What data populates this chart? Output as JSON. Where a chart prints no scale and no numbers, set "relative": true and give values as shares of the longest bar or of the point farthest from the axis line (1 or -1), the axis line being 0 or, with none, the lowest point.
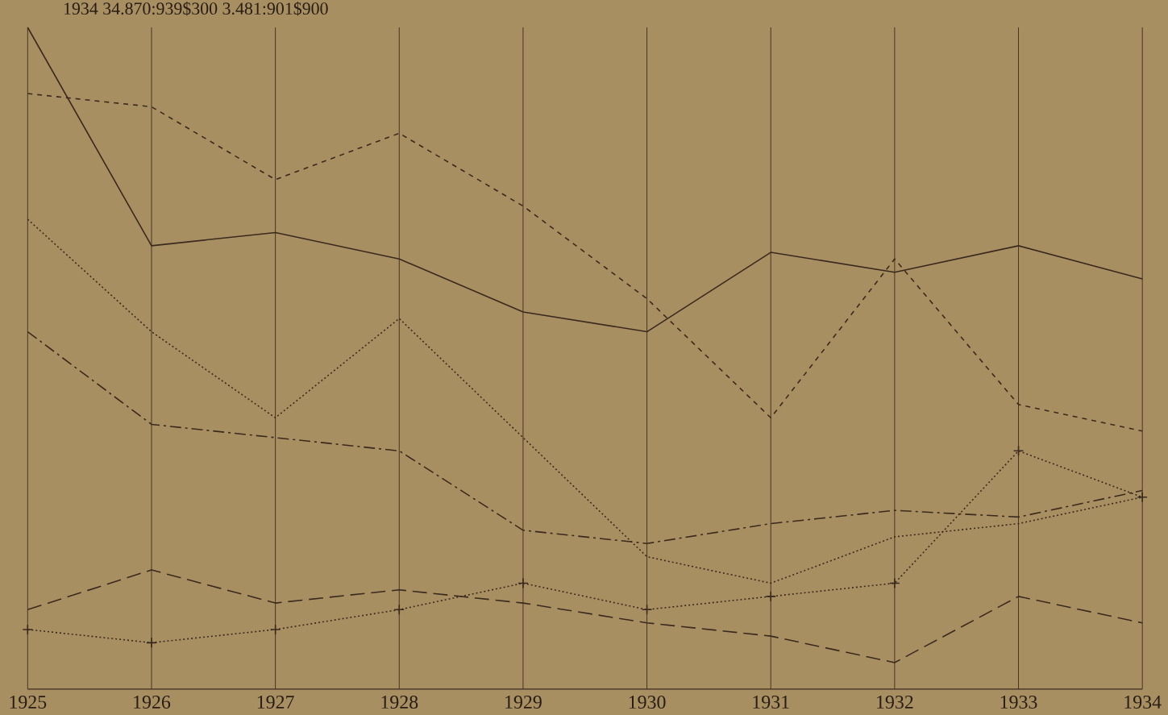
{
  "chart_data": {
    "type": "line",
    "relative": true,
    "grid": "x",
    "annotations": [
      "1934     34.870:939$300     3.481:901$900"
    ],
    "categories": [
      "1925",
      "1926",
      "1927",
      "1928",
      "1929",
      "1930",
      "1931",
      "1932",
      "1933",
      "1934"
    ],
    "series": [
      {
        "color": "#3a2a1e",
        "line_style": "solid",
        "values": [
          1.0,
          0.67,
          0.69,
          0.65,
          0.57,
          0.54,
          0.66,
          0.63,
          0.67,
          0.62
        ]
      },
      {
        "color": "#3a2a1e",
        "line_style": "dashed",
        "values": [
          0.9,
          0.88,
          0.77,
          0.84,
          0.73,
          0.59,
          0.41,
          0.65,
          0.43,
          0.39
        ]
      },
      {
        "color": "#3a2a1e",
        "line_style": "dotted",
        "values": [
          0.71,
          0.54,
          0.41,
          0.56,
          0.38,
          0.2,
          0.16,
          0.23,
          0.25,
          0.29
        ]
      },
      {
        "color": "#3a2a1e",
        "line_style": "dashdot",
        "values": [
          0.54,
          0.4,
          0.38,
          0.36,
          0.24,
          0.22,
          0.25,
          0.27,
          0.26,
          0.3
        ]
      },
      {
        "color": "#3a2a1e",
        "line_style": "longdash",
        "values": [
          0.12,
          0.18,
          0.13,
          0.15,
          0.13,
          0.1,
          0.08,
          0.04,
          0.14,
          0.1
        ]
      },
      {
        "color": "#3a2a1e",
        "line_style": "dotted",
        "marker": "cross",
        "values": [
          0.09,
          0.07,
          0.09,
          0.12,
          0.16,
          0.12,
          0.14,
          0.16,
          0.36,
          0.29
        ]
      }
    ]
  }
}
